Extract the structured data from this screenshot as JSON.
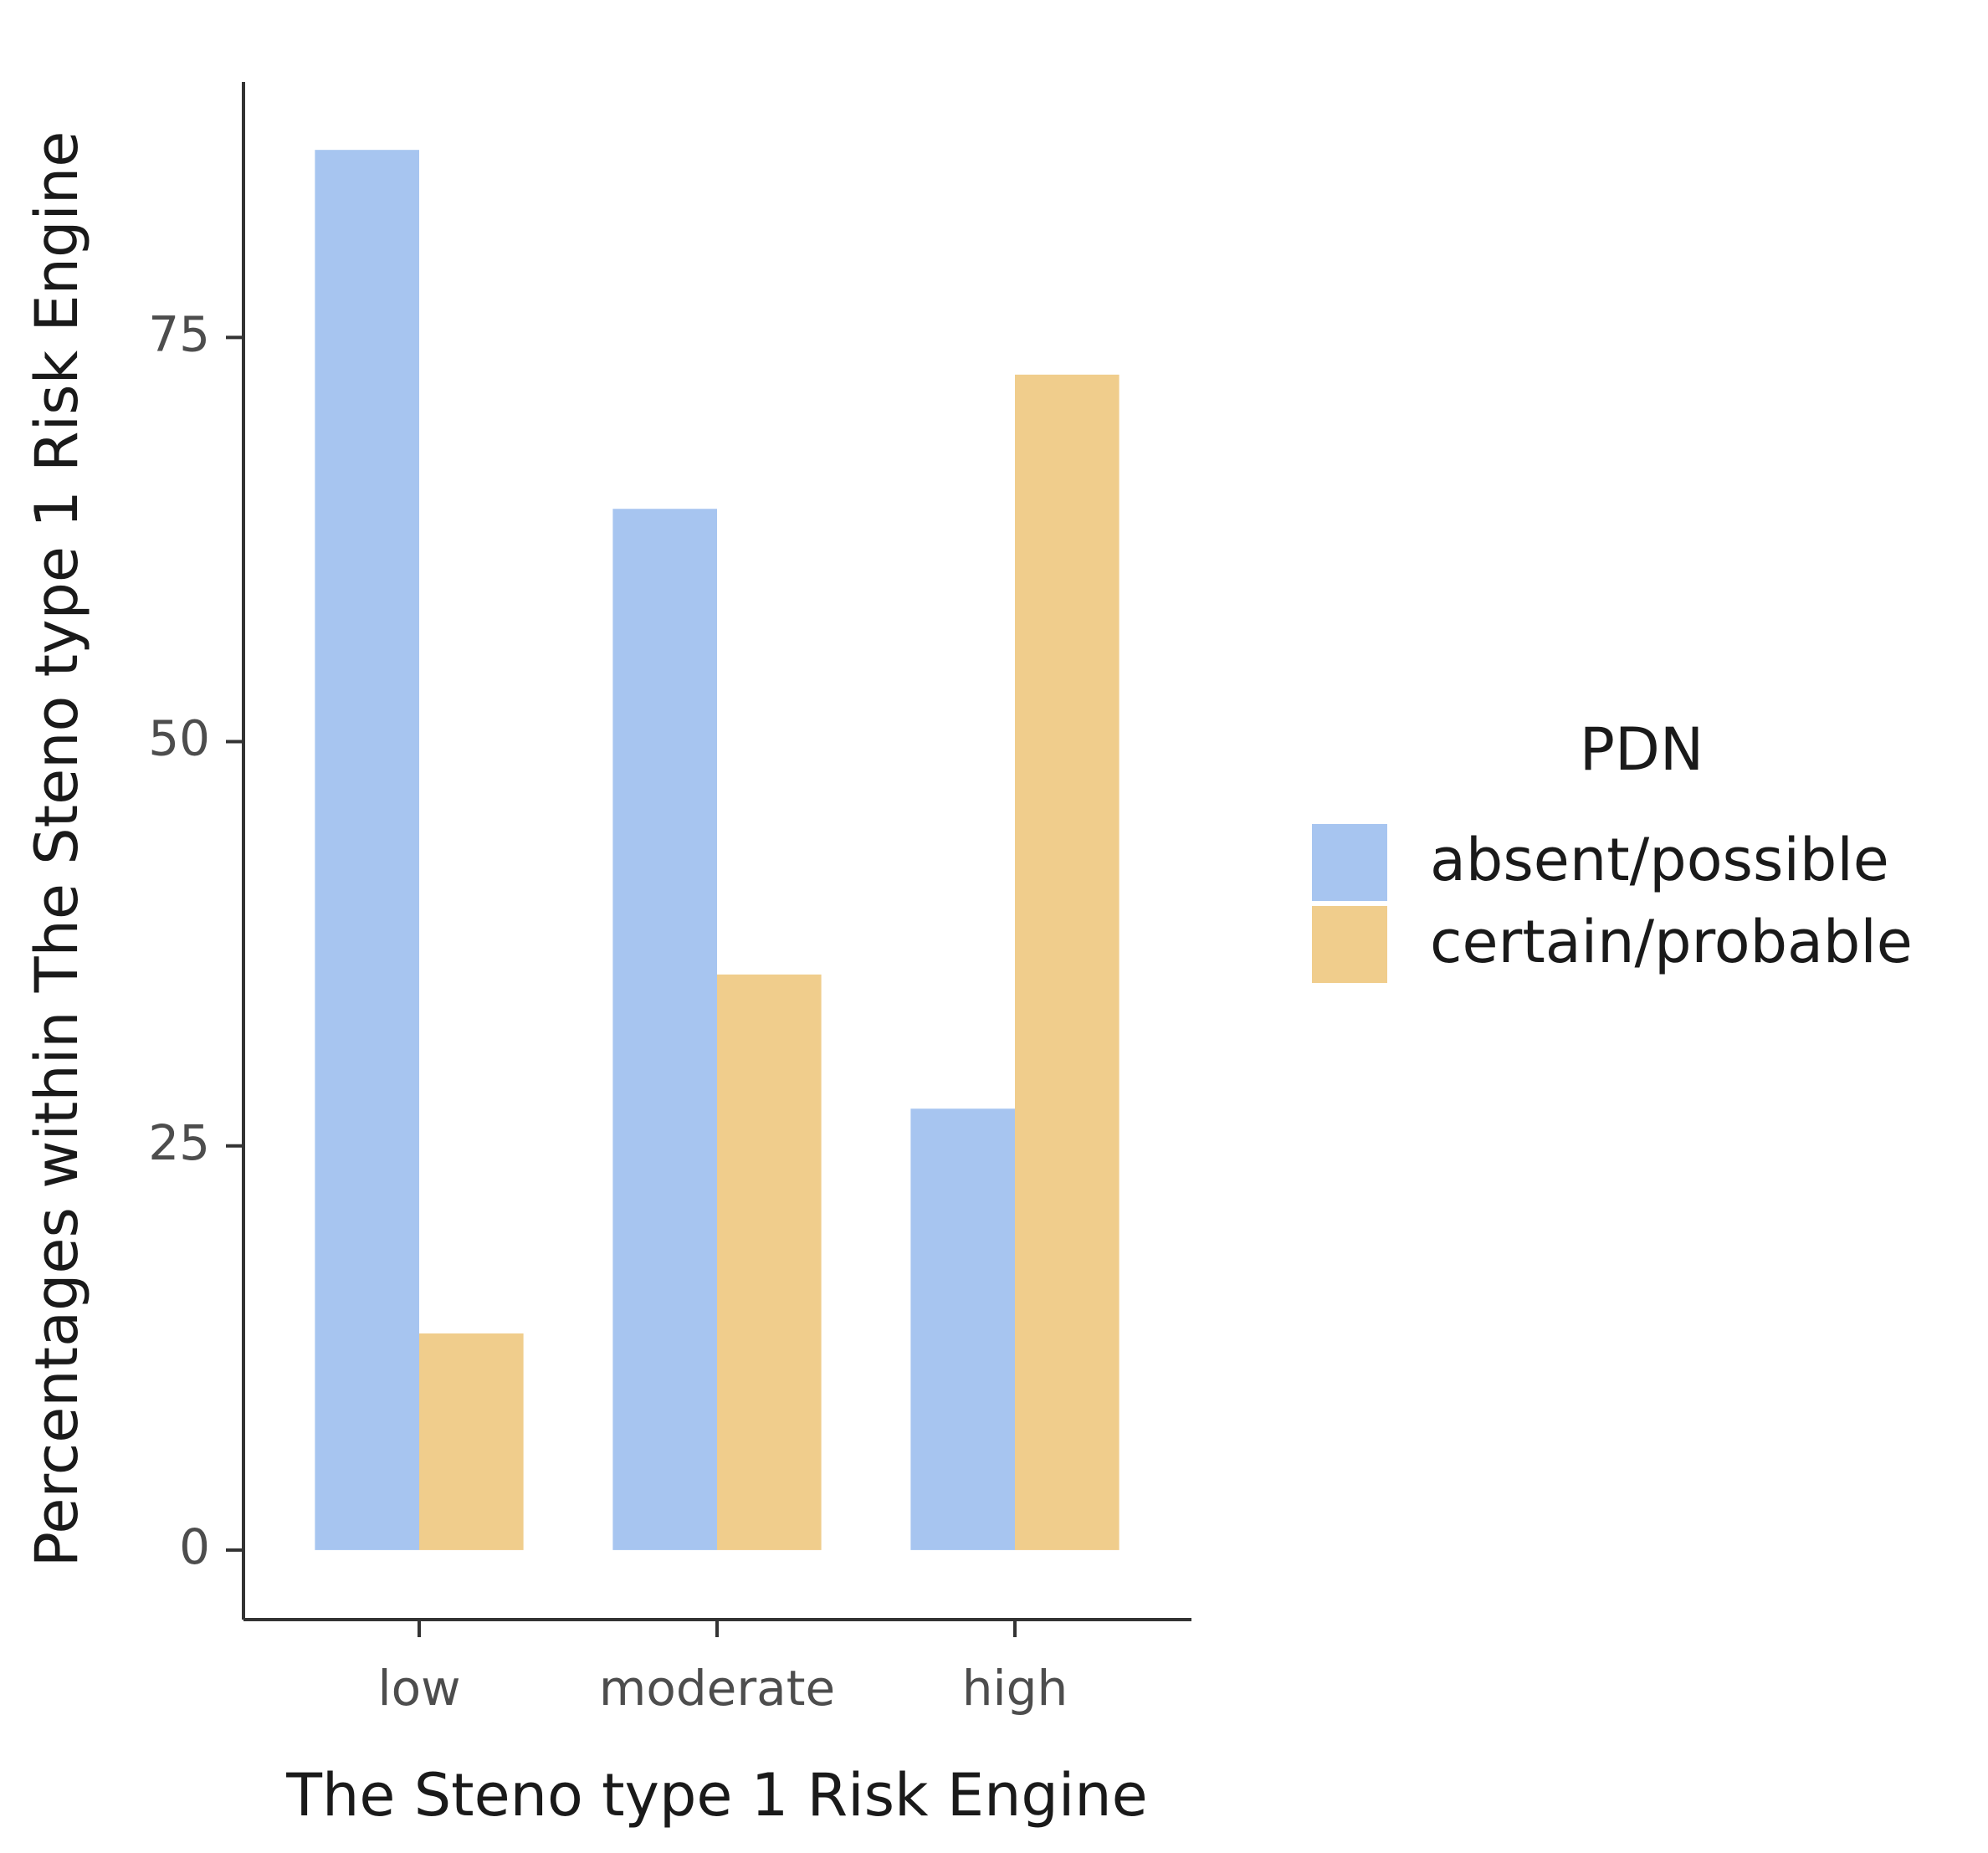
{
  "chart_data": {
    "type": "bar",
    "x_label": "The Steno type 1 Risk Engine",
    "y_label": "Percentages within The Steno type 1 Risk Engine",
    "categories": [
      "low",
      "moderate",
      "high"
    ],
    "series": [
      {
        "name": "absent/possible",
        "color": "#a7c5f0",
        "values": [
          86.6,
          64.4,
          27.3
        ]
      },
      {
        "name": "certain/probable",
        "color": "#f0cd8c",
        "values": [
          13.4,
          35.6,
          72.7
        ]
      }
    ],
    "legend_title": "PDN",
    "legend_position": "right",
    "ylim": [
      -4.3,
      90.8
    ],
    "yticks": [
      0,
      25,
      50,
      75
    ],
    "grid": false
  }
}
